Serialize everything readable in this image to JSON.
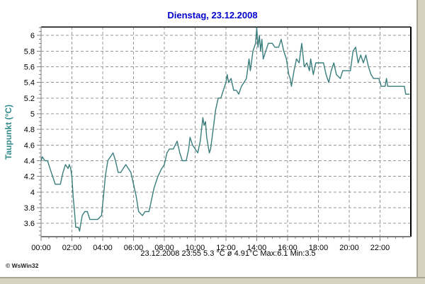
{
  "header": {
    "title": "Dienstag, 23.12.2008",
    "title_color": "#0000cc"
  },
  "status_bar": {
    "text": "23.12.2008  23:55   5.3 °C   ø 4.91°C  Max:6.1  Min:3.5"
  },
  "window": {
    "copyright": "© WsWin32",
    "edge_fill": "#d6d2c2",
    "edge_line": "#aaa696"
  },
  "chart_data": {
    "type": "line",
    "title": "Dienstag, 23.12.2008",
    "xlabel": "",
    "ylabel": "Taupunkt  (°C)",
    "legend": "none",
    "grid": true,
    "grid_color": "#999999",
    "tick_color": "#808080",
    "line_color": "#3a7d7d",
    "xlim_hours": [
      0,
      24
    ],
    "ylim": [
      3.43,
      6.11
    ],
    "y_ticks": [
      3.6,
      3.8,
      4,
      4.2,
      4.4,
      4.6,
      4.8,
      5,
      5.2,
      5.4,
      5.6,
      5.8,
      6
    ],
    "y_tick_labels": [
      "3.6",
      "3.8",
      "4",
      "4.2",
      "4.4",
      "4.6",
      "4.8",
      "5",
      "5.2",
      "5.4",
      "5.6",
      "5.8",
      "6"
    ],
    "y_minor_step": 0.05,
    "x_ticks_hours": [
      0,
      2,
      4,
      6,
      8,
      10,
      12,
      14,
      16,
      18,
      20,
      22
    ],
    "x_tick_labels": [
      "00:00",
      "02:00",
      "04:00",
      "06:00",
      "08:00",
      "10:00",
      "12:00",
      "14:00",
      "16:00",
      "18:00",
      "20:00",
      "22:00"
    ],
    "x_minor_step_hours": 0.5,
    "stats": {
      "date": "23.12.2008",
      "last_time": "23:55",
      "last_value": "5.3 °C",
      "mean": "4.91°C",
      "max": 6.1,
      "min": 3.5
    },
    "series": [
      {
        "name": "Taupunkt",
        "x_hours": [
          0.0,
          0.08,
          0.25,
          0.42,
          0.58,
          0.75,
          0.92,
          1.08,
          1.25,
          1.42,
          1.58,
          1.75,
          1.83,
          1.92,
          2.0,
          2.08,
          2.17,
          2.25,
          2.42,
          2.5,
          2.58,
          2.67,
          2.83,
          3.0,
          3.17,
          3.42,
          3.67,
          3.92,
          4.08,
          4.17,
          4.33,
          4.5,
          4.67,
          4.83,
          5.0,
          5.17,
          5.33,
          5.5,
          5.67,
          5.83,
          6.0,
          6.17,
          6.33,
          6.58,
          6.75,
          7.0,
          7.17,
          7.33,
          7.58,
          7.83,
          8.0,
          8.17,
          8.33,
          8.58,
          8.83,
          9.0,
          9.17,
          9.42,
          9.58,
          9.67,
          9.83,
          10.0,
          10.17,
          10.33,
          10.5,
          10.58,
          10.67,
          10.75,
          10.92,
          11.0,
          11.17,
          11.33,
          11.5,
          11.67,
          11.83,
          12.0,
          12.08,
          12.17,
          12.33,
          12.5,
          12.67,
          12.83,
          13.0,
          13.17,
          13.33,
          13.5,
          13.58,
          13.75,
          13.92,
          14.0,
          14.08,
          14.17,
          14.25,
          14.33,
          14.42,
          14.58,
          14.75,
          15.0,
          15.17,
          15.42,
          15.58,
          15.75,
          15.92,
          16.08,
          16.17,
          16.25,
          16.42,
          16.58,
          16.75,
          16.92,
          17.08,
          17.25,
          17.42,
          17.5,
          17.67,
          17.83,
          18.08,
          18.33,
          18.5,
          18.67,
          18.83,
          19.0,
          19.17,
          19.42,
          19.58,
          19.83,
          20.08,
          20.25,
          20.42,
          20.58,
          20.75,
          20.92,
          21.08,
          21.25,
          21.42,
          21.58,
          21.92,
          22.08,
          22.33,
          22.42,
          22.5,
          22.83,
          23.17,
          23.58,
          23.67,
          23.92
        ],
        "y_values": [
          4.4,
          4.45,
          4.4,
          4.4,
          4.3,
          4.2,
          4.1,
          4.1,
          4.1,
          4.25,
          4.35,
          4.3,
          4.35,
          4.3,
          4.2,
          3.95,
          3.75,
          3.55,
          3.55,
          3.5,
          3.6,
          3.7,
          3.75,
          3.75,
          3.65,
          3.65,
          3.65,
          3.7,
          4.0,
          4.2,
          4.4,
          4.45,
          4.5,
          4.4,
          4.25,
          4.25,
          4.3,
          4.35,
          4.3,
          4.25,
          4.1,
          3.95,
          3.75,
          3.7,
          3.75,
          3.75,
          3.9,
          4.05,
          4.2,
          4.3,
          4.35,
          4.5,
          4.55,
          4.55,
          4.65,
          4.5,
          4.4,
          4.4,
          4.55,
          4.7,
          4.6,
          4.55,
          4.5,
          4.65,
          4.95,
          4.85,
          4.9,
          4.7,
          4.5,
          4.55,
          4.8,
          5.05,
          5.2,
          5.2,
          5.3,
          5.4,
          5.5,
          5.4,
          5.45,
          5.3,
          5.3,
          5.25,
          5.35,
          5.4,
          5.45,
          5.7,
          5.55,
          5.8,
          5.9,
          6.1,
          5.85,
          6.0,
          5.8,
          5.95,
          5.7,
          5.8,
          5.9,
          5.9,
          5.85,
          5.85,
          5.95,
          5.8,
          5.7,
          5.5,
          5.45,
          5.35,
          5.55,
          5.7,
          5.65,
          5.9,
          5.6,
          5.65,
          5.55,
          5.7,
          5.5,
          5.65,
          5.65,
          5.65,
          5.5,
          5.4,
          5.55,
          5.65,
          5.5,
          5.45,
          5.55,
          5.55,
          5.55,
          5.8,
          5.85,
          5.65,
          5.75,
          5.65,
          5.75,
          5.6,
          5.5,
          5.45,
          5.45,
          5.35,
          5.35,
          5.45,
          5.35,
          5.35,
          5.35,
          5.35,
          5.25,
          5.25
        ]
      }
    ]
  }
}
